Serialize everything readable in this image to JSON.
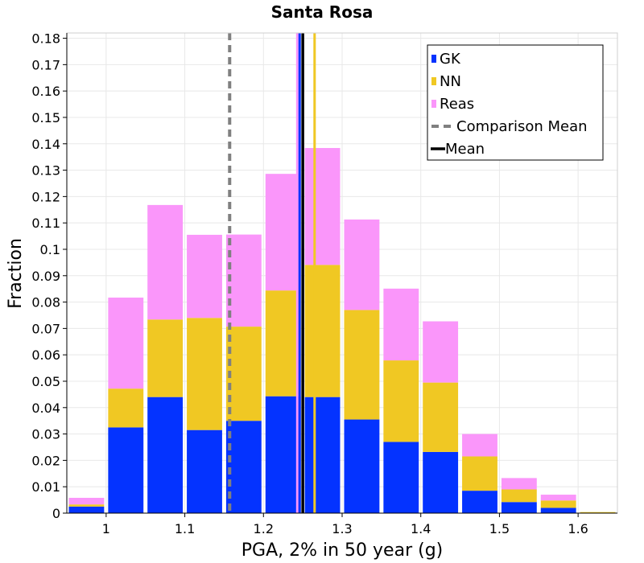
{
  "chart_data": {
    "type": "bar",
    "stacked": true,
    "title": "Santa Rosa",
    "xlabel": "PGA, 2% in 50 year (g)",
    "ylabel": "Fraction",
    "xlim": [
      0.95,
      1.65
    ],
    "ylim": [
      0,
      0.182
    ],
    "bin_width": 0.05,
    "bin_centers": [
      0.975,
      1.025,
      1.075,
      1.125,
      1.175,
      1.225,
      1.275,
      1.325,
      1.375,
      1.425,
      1.475,
      1.525,
      1.575,
      1.625
    ],
    "series": [
      {
        "name": "GK",
        "color": "#0433ff",
        "values": [
          0.0025,
          0.0325,
          0.044,
          0.0315,
          0.035,
          0.0443,
          0.044,
          0.0355,
          0.027,
          0.0232,
          0.0085,
          0.0042,
          0.002,
          0.0
        ]
      },
      {
        "name": "NN",
        "color": "#f0c823",
        "values": [
          0.0008,
          0.0147,
          0.0294,
          0.0425,
          0.0357,
          0.0401,
          0.0501,
          0.0415,
          0.0309,
          0.0263,
          0.013,
          0.0048,
          0.0028,
          0.0004
        ]
      },
      {
        "name": "Reas",
        "color": "#fa96fa",
        "values": [
          0.0025,
          0.0345,
          0.0434,
          0.0315,
          0.0349,
          0.0442,
          0.0443,
          0.0343,
          0.0272,
          0.0232,
          0.0085,
          0.0043,
          0.0022,
          0.0
        ]
      }
    ],
    "x_ticks": [
      "1",
      "1.1",
      "1.2",
      "1.3",
      "1.4",
      "1.5",
      "1.6"
    ],
    "x_tick_values": [
      1.0,
      1.1,
      1.2,
      1.3,
      1.4,
      1.5,
      1.6
    ],
    "y_ticks": [
      "0",
      "0.01",
      "0.02",
      "0.03",
      "0.04",
      "0.05",
      "0.06",
      "0.07",
      "0.08",
      "0.09",
      "0.1",
      "0.11",
      "0.12",
      "0.13",
      "0.14",
      "0.15",
      "0.16",
      "0.17",
      "0.18"
    ],
    "y_tick_values": [
      0,
      0.01,
      0.02,
      0.03,
      0.04,
      0.05,
      0.06,
      0.07,
      0.08,
      0.09,
      0.1,
      0.11,
      0.12,
      0.13,
      0.14,
      0.15,
      0.16,
      0.17,
      0.18
    ],
    "vertical_lines": [
      {
        "name": "Comparison Mean",
        "x": 1.157,
        "color": "#808080",
        "style": "dashed"
      },
      {
        "name": "Mean",
        "x": 1.25,
        "color": "#000000",
        "style": "solid"
      },
      {
        "name": "Reas mean",
        "x": 1.243,
        "color": "#fa96fa",
        "style": "solid",
        "in_legend": false
      },
      {
        "name": "GK mean",
        "x": 1.246,
        "color": "#0433ff",
        "style": "solid",
        "in_legend": false
      },
      {
        "name": "NN mean",
        "x": 1.265,
        "color": "#f0c823",
        "style": "solid",
        "in_legend": false
      }
    ],
    "legend": {
      "position": "top-right",
      "entries": [
        {
          "label": "GK",
          "kind": "box",
          "color": "#0433ff"
        },
        {
          "label": "NN",
          "kind": "box",
          "color": "#f0c823"
        },
        {
          "label": "Reas",
          "kind": "box",
          "color": "#fa96fa"
        },
        {
          "label": "Comparison Mean",
          "kind": "dashed",
          "color": "#808080"
        },
        {
          "label": "Mean",
          "kind": "line",
          "color": "#000000"
        }
      ]
    },
    "grid": true
  }
}
